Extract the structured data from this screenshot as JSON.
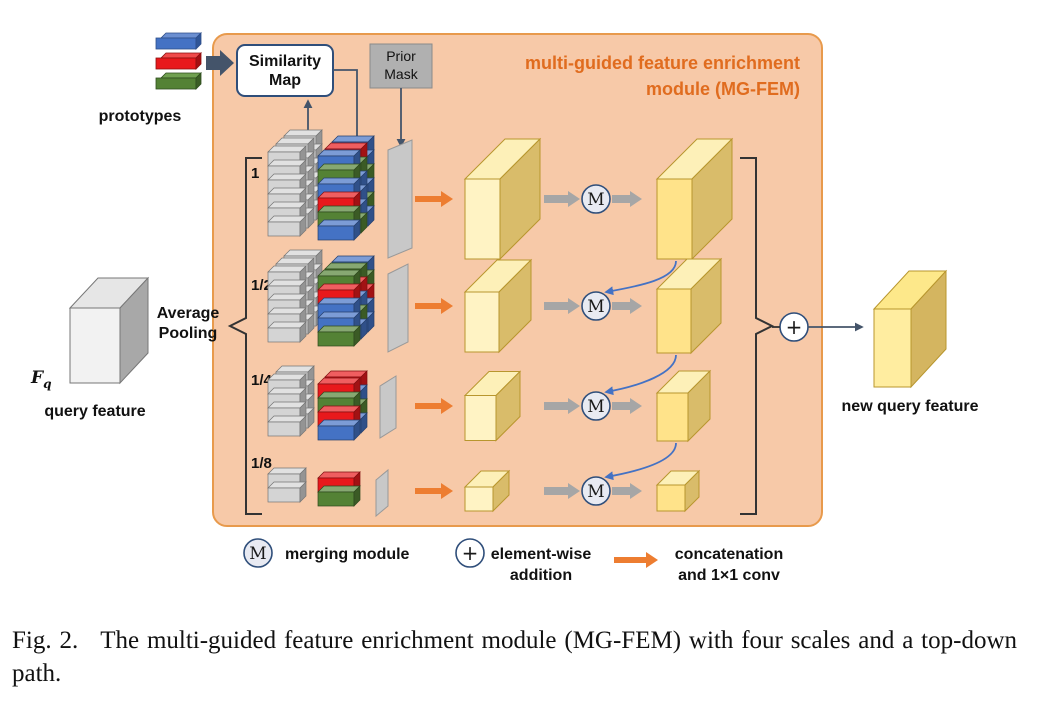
{
  "module": {
    "title_line1": "multi-guided feature enrichment",
    "title_line2": "module (MG-FEM)"
  },
  "inputs": {
    "prototypes_label": "prototypes",
    "similarity_map_line1": "Similarity",
    "similarity_map_line2": "Map",
    "prior_mask_line1": "Prior",
    "prior_mask_line2": "Mask",
    "query_symbol": "F",
    "query_subscript": "q",
    "query_label": "query feature",
    "avg_pooling_line1": "Average",
    "avg_pooling_line2": "Pooling"
  },
  "scales": [
    "1",
    "1/2",
    "1/4",
    "1/8"
  ],
  "output": {
    "label": "new query feature"
  },
  "symbols": {
    "merge": "M",
    "add": "+"
  },
  "legend": {
    "merge_label": "merging module",
    "add_line1": "element-wise",
    "add_line2": "addition",
    "concat_line1": "concatenation",
    "concat_line2": "and 1×1 conv"
  },
  "caption": {
    "tag": "Fig. 2.",
    "text": "The multi-guided feature enrichment module (MG-FEM) with four scales and a top-down path."
  },
  "colors": {
    "module_bg": "#f7c9a8",
    "module_border": "#e89a4c",
    "title": "#e06c1f",
    "proto_blue": "#4472c4",
    "proto_red": "#e8191c",
    "proto_green": "#548235",
    "arrow_orange": "#ed7d31",
    "arrow_gray": "#a6a6a6",
    "arrow_blue": "#4472c4"
  }
}
